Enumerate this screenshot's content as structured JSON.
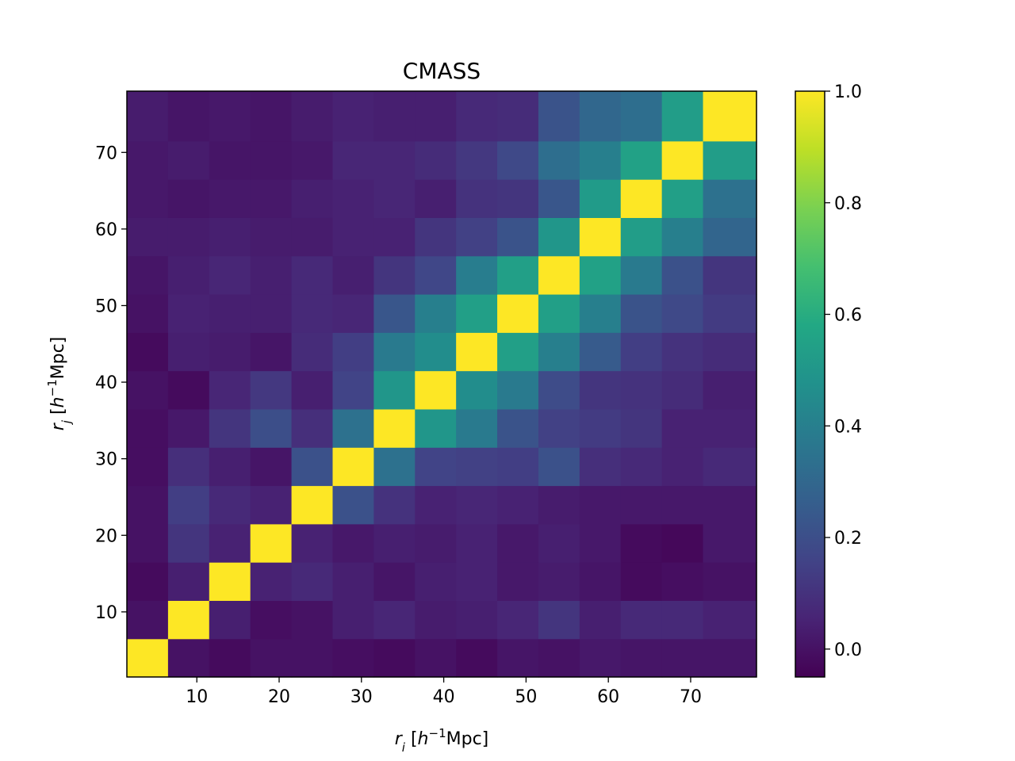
{
  "chart_data": {
    "type": "heatmap",
    "title": "CMASS",
    "xlabel": "r_i [h⁻¹Mpc]",
    "ylabel": "r_j [h⁻¹Mpc]",
    "xlabel_parts": {
      "var": "r",
      "sub": "i",
      "open": " [",
      "h": "h",
      "sup": "−1",
      "unit": "Mpc]"
    },
    "ylabel_parts": {
      "var": "r",
      "sub": "j",
      "open": " [",
      "h": "h",
      "sup": "−1",
      "unit": "Mpc]"
    },
    "bin_centers": [
      4,
      9,
      14,
      19,
      24,
      29,
      34,
      39,
      44,
      49,
      54,
      59,
      64,
      69,
      74
    ],
    "xlim": [
      1.5,
      78
    ],
    "ylim": [
      1.5,
      78
    ],
    "xticks": [
      10,
      20,
      30,
      40,
      50,
      60,
      70
    ],
    "yticks": [
      10,
      20,
      30,
      40,
      50,
      60,
      70
    ],
    "colorbar": {
      "vmin": -0.05,
      "vmax": 1.0,
      "ticks": [
        0.0,
        0.2,
        0.4,
        0.6,
        0.8,
        1.0
      ],
      "tick_labels": [
        "0.0",
        "0.2",
        "0.4",
        "0.6",
        "0.8",
        "1.0"
      ],
      "colormap": "viridis"
    },
    "matrix": [
      [
        1.0,
        0.0,
        -0.02,
        0.0,
        0.0,
        -0.01,
        -0.02,
        0.0,
        -0.02,
        0.01,
        0.0,
        0.02,
        0.01,
        0.01,
        0.01
      ],
      [
        0.0,
        1.0,
        0.04,
        -0.01,
        0.0,
        0.04,
        0.06,
        0.03,
        0.04,
        0.06,
        0.11,
        0.04,
        0.07,
        0.07,
        0.05
      ],
      [
        -0.02,
        0.04,
        1.0,
        0.05,
        0.07,
        0.04,
        0.01,
        0.04,
        0.05,
        0.02,
        0.03,
        0.01,
        -0.02,
        -0.01,
        0.0
      ],
      [
        0.0,
        0.11,
        0.05,
        1.0,
        0.05,
        0.02,
        0.04,
        0.03,
        0.05,
        0.02,
        0.04,
        0.02,
        -0.02,
        -0.03,
        0.02
      ],
      [
        0.0,
        0.14,
        0.07,
        0.05,
        1.0,
        0.21,
        0.1,
        0.05,
        0.06,
        0.05,
        0.03,
        0.02,
        0.02,
        0.02,
        0.02
      ],
      [
        -0.01,
        0.09,
        0.04,
        0.01,
        0.21,
        1.0,
        0.34,
        0.16,
        0.15,
        0.14,
        0.21,
        0.09,
        0.07,
        0.05,
        0.07
      ],
      [
        -0.01,
        0.02,
        0.11,
        0.2,
        0.09,
        0.34,
        1.0,
        0.5,
        0.38,
        0.22,
        0.15,
        0.13,
        0.11,
        0.05,
        0.05
      ],
      [
        0.0,
        -0.02,
        0.06,
        0.12,
        0.04,
        0.16,
        0.5,
        1.0,
        0.46,
        0.38,
        0.19,
        0.11,
        0.1,
        0.08,
        0.04
      ],
      [
        -0.02,
        0.04,
        0.03,
        0.01,
        0.08,
        0.14,
        0.38,
        0.46,
        1.0,
        0.54,
        0.4,
        0.25,
        0.14,
        0.1,
        0.08
      ],
      [
        0.0,
        0.05,
        0.04,
        0.04,
        0.07,
        0.06,
        0.23,
        0.4,
        0.54,
        1.0,
        0.54,
        0.4,
        0.22,
        0.18,
        0.13
      ],
      [
        0.01,
        0.04,
        0.06,
        0.04,
        0.07,
        0.04,
        0.11,
        0.17,
        0.39,
        0.54,
        1.0,
        0.55,
        0.38,
        0.21,
        0.11
      ],
      [
        0.03,
        0.03,
        0.04,
        0.03,
        0.03,
        0.05,
        0.05,
        0.11,
        0.15,
        0.22,
        0.5,
        1.0,
        0.53,
        0.4,
        0.29
      ],
      [
        0.02,
        0.01,
        0.02,
        0.02,
        0.04,
        0.05,
        0.06,
        0.04,
        0.1,
        0.11,
        0.23,
        0.52,
        1.0,
        0.54,
        0.34
      ],
      [
        0.02,
        0.03,
        0.01,
        0.01,
        0.02,
        0.06,
        0.06,
        0.08,
        0.12,
        0.18,
        0.33,
        0.4,
        0.55,
        1.0,
        0.53
      ],
      [
        0.03,
        0.01,
        0.02,
        0.01,
        0.03,
        0.05,
        0.04,
        0.04,
        0.07,
        0.08,
        0.22,
        0.3,
        0.33,
        0.53,
        1.0
      ]
    ]
  }
}
